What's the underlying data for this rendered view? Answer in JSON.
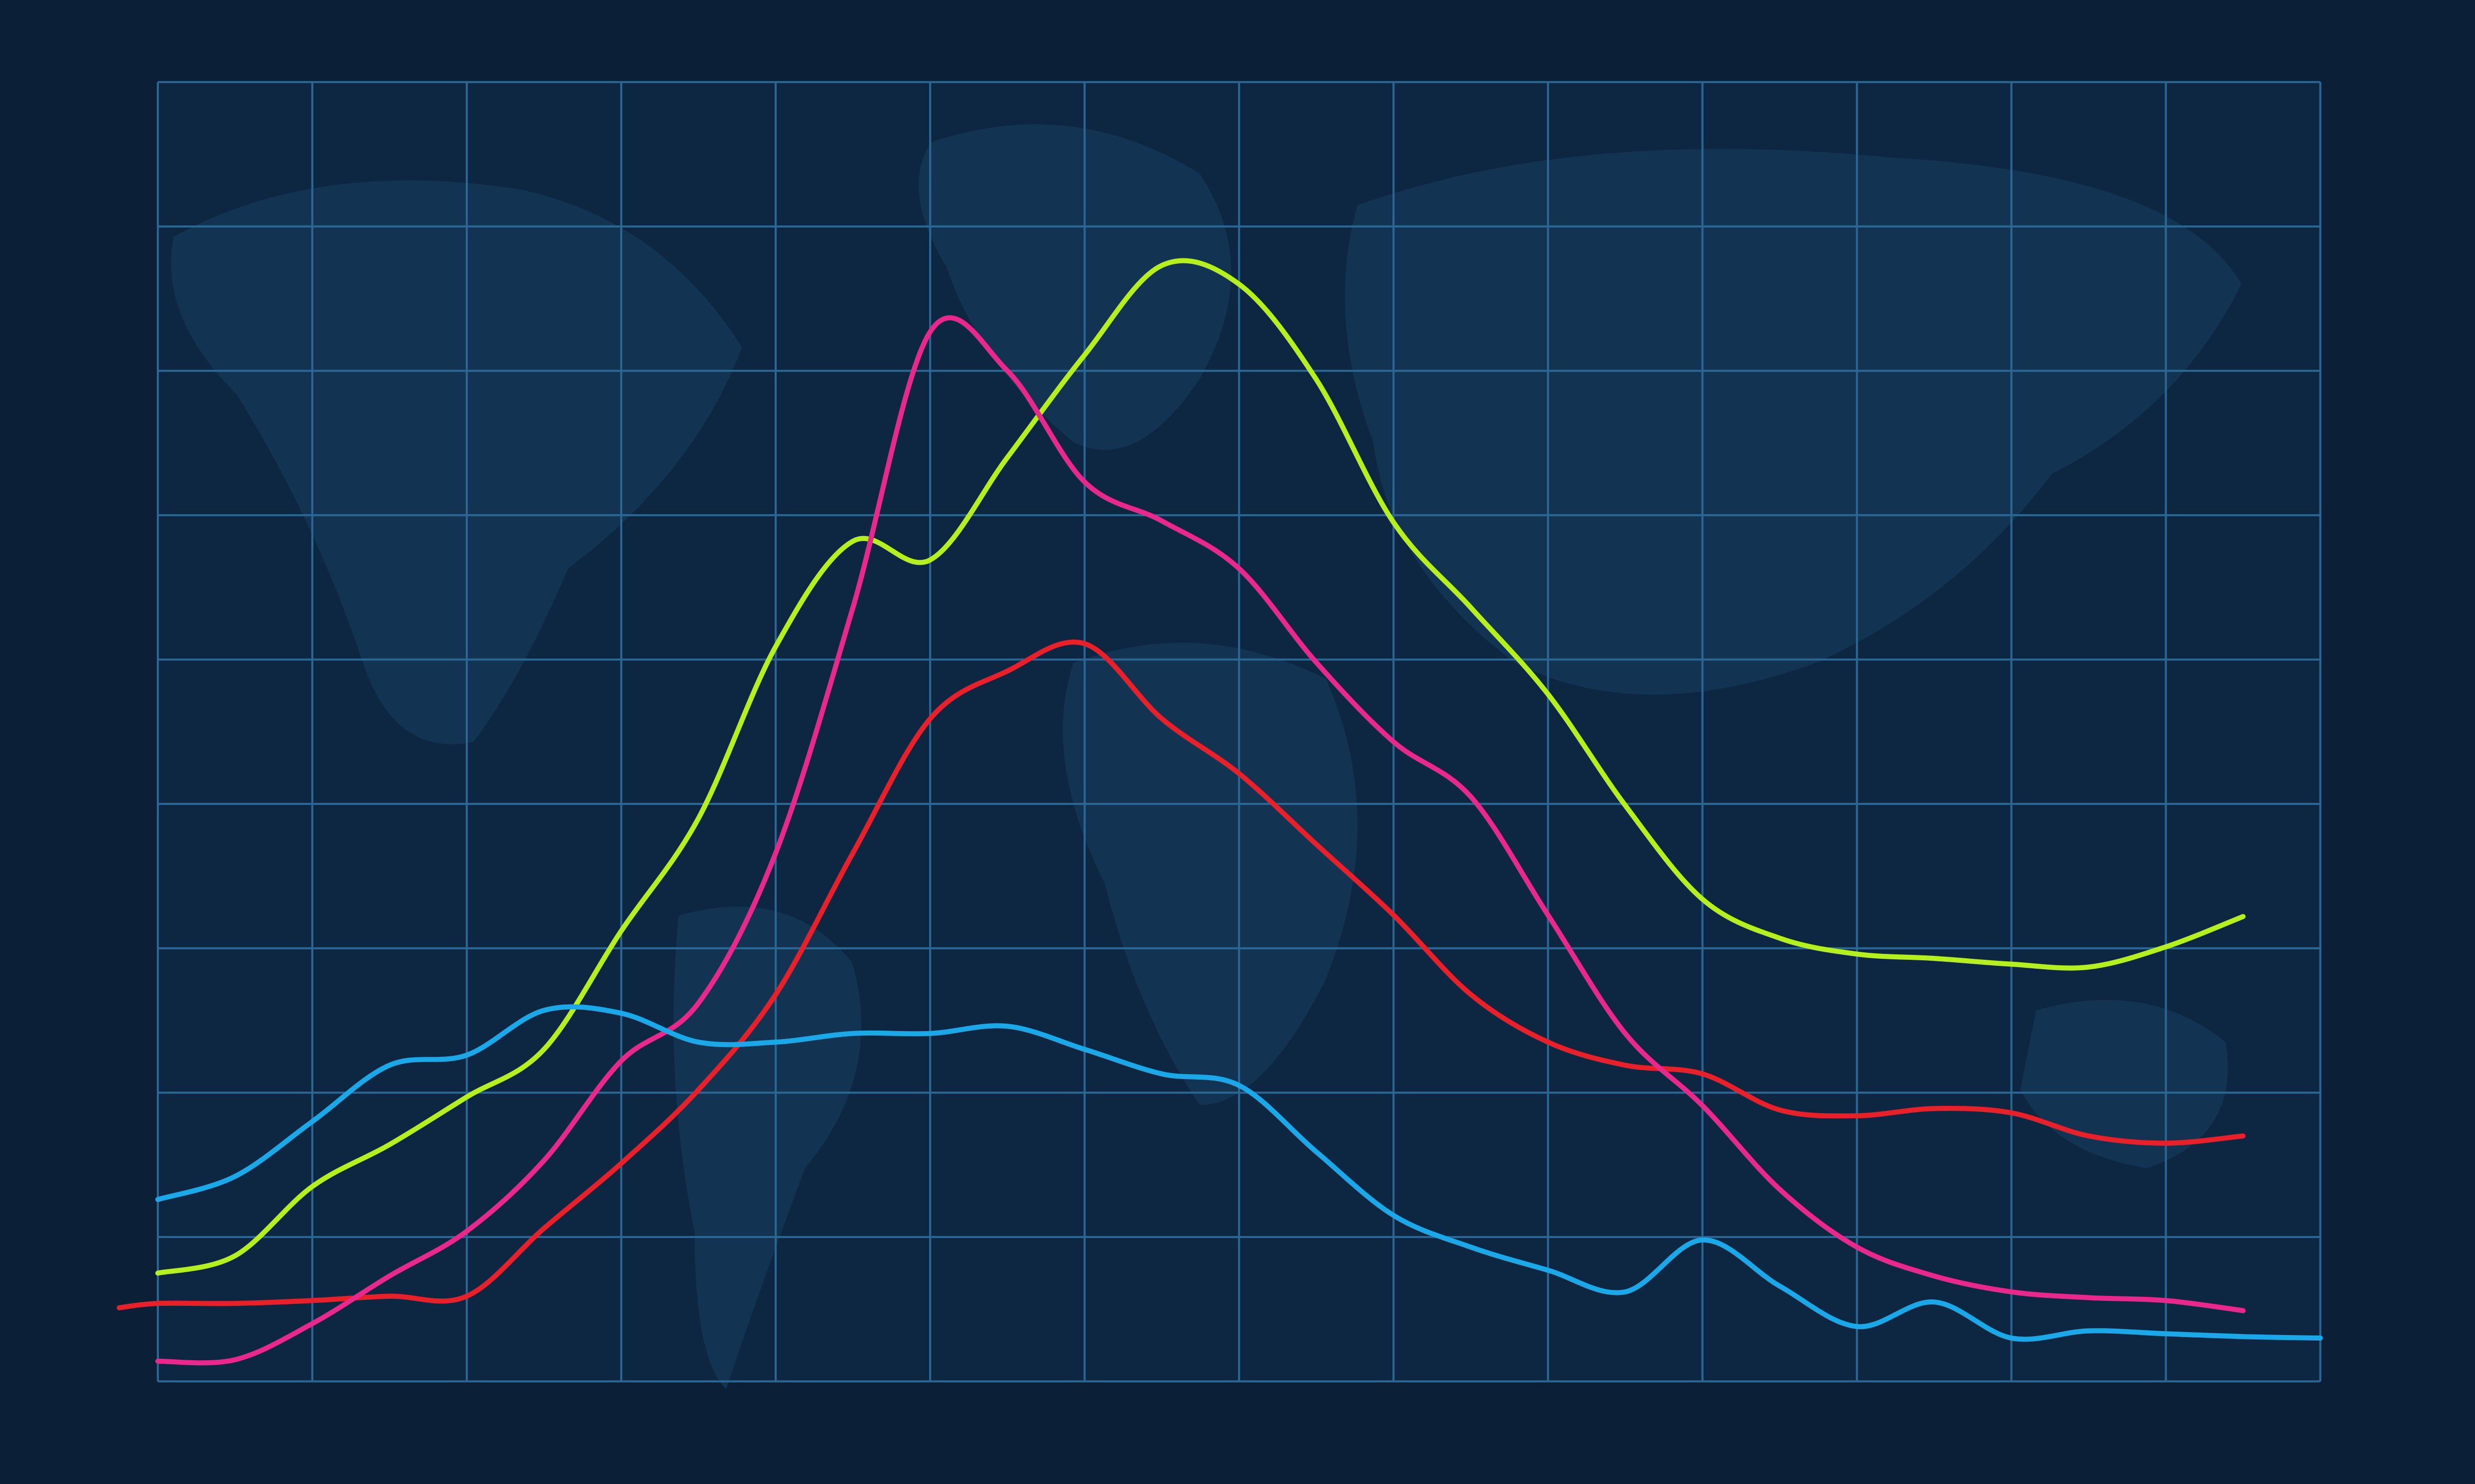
{
  "chart_data": {
    "type": "line",
    "x": [
      -0.25,
      0,
      0.5,
      1,
      1.5,
      2,
      2.5,
      3,
      3.5,
      4,
      4.5,
      5,
      5.5,
      6,
      6.5,
      7,
      7.5,
      8,
      8.5,
      9,
      9.5,
      10,
      10.5,
      11,
      11.5,
      12,
      12.5,
      13,
      13.5,
      14
    ],
    "series": [
      {
        "color": "#b5f01e",
        "values": [
          null,
          0.75,
          0.87,
          1.35,
          1.64,
          1.97,
          2.3,
          3.12,
          3.9,
          5.09,
          5.82,
          5.69,
          6.4,
          7.11,
          7.73,
          7.6,
          6.94,
          5.95,
          5.36,
          4.76,
          3.99,
          3.34,
          3.07,
          2.96,
          2.93,
          2.89,
          2.87,
          3.01,
          3.22,
          null
        ]
      },
      {
        "color": "#e8202a",
        "values": [
          0.51,
          0.54,
          0.54,
          0.56,
          0.59,
          0.59,
          1.06,
          1.51,
          2.02,
          2.68,
          3.66,
          4.59,
          4.92,
          5.11,
          4.59,
          4.21,
          3.72,
          3.23,
          2.68,
          2.35,
          2.19,
          2.13,
          1.88,
          1.84,
          1.89,
          1.86,
          1.7,
          1.65,
          1.7,
          null
        ]
      },
      {
        "color": "#e8288a",
        "values": [
          null,
          0.14,
          0.15,
          0.4,
          0.73,
          1.04,
          1.53,
          2.22,
          2.62,
          3.66,
          5.36,
          7.27,
          7.0,
          6.23,
          5.96,
          5.63,
          4.98,
          4.43,
          4.05,
          3.23,
          2.41,
          1.91,
          1.33,
          0.93,
          0.73,
          0.62,
          0.58,
          0.56,
          0.49,
          null
        ]
      },
      {
        "color": "#1aa8e8",
        "values": [
          null,
          1.26,
          1.42,
          1.8,
          2.19,
          2.26,
          2.57,
          2.55,
          2.35,
          2.35,
          2.41,
          2.41,
          2.46,
          2.3,
          2.13,
          2.05,
          1.59,
          1.15,
          0.93,
          0.77,
          0.62,
          0.98,
          0.66,
          0.38,
          0.55,
          0.3,
          0.35,
          0.33,
          0.31,
          0.3
        ]
      }
    ],
    "xlim": [
      0,
      14
    ],
    "ylim": [
      0,
      9
    ],
    "xticks": [
      0,
      1,
      2,
      3,
      4,
      5,
      6,
      7,
      8,
      9,
      10,
      11,
      12,
      13,
      14
    ],
    "yticks": [
      0,
      1,
      2,
      3,
      4,
      5,
      6,
      7,
      8,
      9
    ],
    "grid": true
  }
}
